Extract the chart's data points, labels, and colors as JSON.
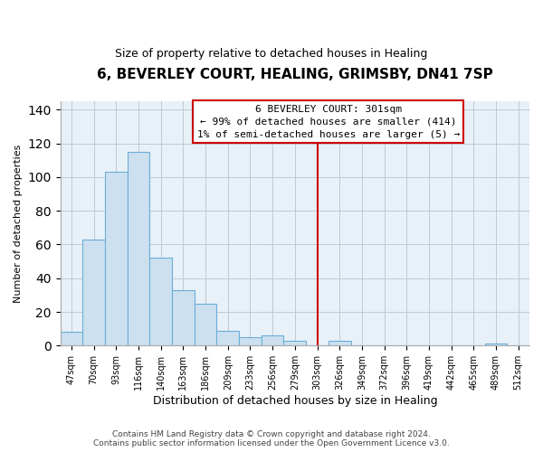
{
  "title": "6, BEVERLEY COURT, HEALING, GRIMSBY, DN41 7SP",
  "subtitle": "Size of property relative to detached houses in Healing",
  "xlabel": "Distribution of detached houses by size in Healing",
  "ylabel": "Number of detached properties",
  "bar_labels": [
    "47sqm",
    "70sqm",
    "93sqm",
    "116sqm",
    "140sqm",
    "163sqm",
    "186sqm",
    "209sqm",
    "233sqm",
    "256sqm",
    "279sqm",
    "303sqm",
    "326sqm",
    "349sqm",
    "372sqm",
    "396sqm",
    "419sqm",
    "442sqm",
    "465sqm",
    "489sqm",
    "512sqm"
  ],
  "bar_values": [
    8,
    63,
    103,
    115,
    52,
    33,
    25,
    9,
    5,
    6,
    3,
    0,
    3,
    0,
    0,
    0,
    0,
    0,
    0,
    1,
    0
  ],
  "bar_color": "#cce0f0",
  "bar_edge_color": "#6baed6",
  "vline_color": "#cc0000",
  "annotation_title": "6 BEVERLEY COURT: 301sqm",
  "annotation_line1": "← 99% of detached houses are smaller (414)",
  "annotation_line2": "1% of semi-detached houses are larger (5) →",
  "annotation_box_color": "#ffffff",
  "annotation_box_edge": "#cc0000",
  "ylim": [
    0,
    145
  ],
  "yticks": [
    0,
    20,
    40,
    60,
    80,
    100,
    120,
    140
  ],
  "footer1": "Contains HM Land Registry data © Crown copyright and database right 2024.",
  "footer2": "Contains public sector information licensed under the Open Government Licence v3.0.",
  "background_color": "#ffffff",
  "axes_bg_color": "#e8f0f8",
  "grid_color": "#c0c8d0"
}
